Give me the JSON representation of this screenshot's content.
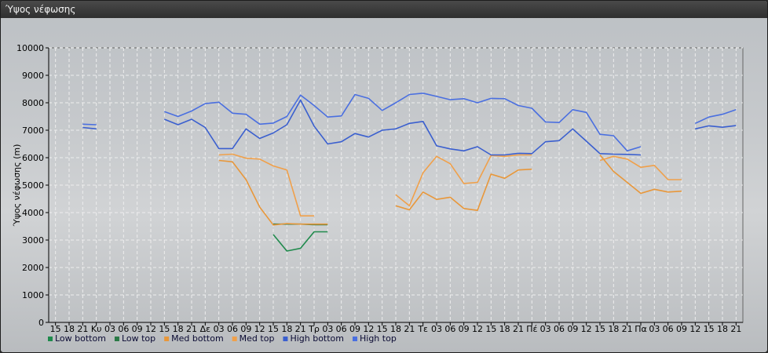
{
  "window": {
    "title": "Ύψος νέφωσης"
  },
  "chart_data": {
    "type": "line",
    "title": "Ύψος νέφωσης",
    "ylabel": "Ύψος νέφωσης (m)",
    "ylim": [
      0,
      10000
    ],
    "yticks": [
      0,
      1000,
      2000,
      3000,
      4000,
      5000,
      6000,
      7000,
      8000,
      9000,
      10000
    ],
    "grid": true,
    "legend_position": "bottom-left",
    "categories": [
      "15",
      "18",
      "21",
      "Κυ",
      "03",
      "06",
      "09",
      "12",
      "15",
      "18",
      "21",
      "Δε",
      "03",
      "06",
      "09",
      "12",
      "15",
      "18",
      "21",
      "Τρ",
      "03",
      "06",
      "09",
      "12",
      "15",
      "18",
      "21",
      "Τε",
      "03",
      "06",
      "09",
      "12",
      "15",
      "18",
      "21",
      "Πέ",
      "03",
      "06",
      "09",
      "12",
      "15",
      "18",
      "21",
      "Πα",
      "03",
      "06",
      "09",
      "12",
      "15",
      "18",
      "21"
    ],
    "series": [
      {
        "name": "Low bottom",
        "color": "#1f8a4c",
        "values": [
          null,
          null,
          null,
          null,
          null,
          null,
          null,
          null,
          null,
          null,
          null,
          null,
          null,
          null,
          null,
          null,
          3200,
          2600,
          2700,
          3300,
          3300,
          null,
          null,
          null,
          null,
          null,
          null,
          null,
          null,
          null,
          null,
          null,
          null,
          null,
          null,
          null,
          null,
          null,
          null,
          null,
          null,
          null,
          null,
          null,
          null,
          null,
          null,
          null,
          null,
          null,
          null
        ]
      },
      {
        "name": "Low top",
        "color": "#2a7a46",
        "values": [
          null,
          null,
          null,
          null,
          null,
          null,
          null,
          null,
          null,
          null,
          null,
          null,
          null,
          null,
          null,
          null,
          3580,
          3580,
          3580,
          3560,
          3560,
          null,
          null,
          null,
          null,
          null,
          null,
          null,
          null,
          null,
          null,
          null,
          null,
          null,
          null,
          null,
          null,
          null,
          null,
          null,
          null,
          null,
          null,
          null,
          null,
          null,
          null,
          null,
          null,
          null,
          null
        ]
      },
      {
        "name": "Med bottom",
        "color": "#e8973a",
        "values": [
          null,
          null,
          null,
          null,
          null,
          null,
          null,
          null,
          null,
          null,
          null,
          null,
          5900,
          5850,
          5200,
          4200,
          3550,
          3600,
          3580,
          3580,
          3580,
          null,
          null,
          null,
          null,
          4250,
          4100,
          4750,
          4480,
          4560,
          4150,
          4080,
          5400,
          5250,
          5550,
          5580,
          null,
          null,
          null,
          null,
          6100,
          5500,
          5100,
          4700,
          4850,
          4750,
          4780,
          null,
          null,
          null,
          null
        ]
      },
      {
        "name": "Med top",
        "color": "#f0a04a",
        "values": [
          null,
          null,
          null,
          null,
          null,
          null,
          null,
          null,
          null,
          null,
          null,
          null,
          6100,
          6130,
          5980,
          5950,
          5700,
          5550,
          3880,
          3880,
          null,
          null,
          null,
          null,
          null,
          4650,
          4250,
          5450,
          6050,
          5780,
          5060,
          5100,
          6080,
          6050,
          6100,
          6100,
          null,
          null,
          null,
          null,
          5900,
          6050,
          5950,
          5650,
          5720,
          5200,
          5200,
          null,
          null,
          null,
          null
        ]
      },
      {
        "name": "High bottom",
        "color": "#3a5fcf",
        "values": [
          null,
          null,
          7100,
          7050,
          null,
          null,
          null,
          null,
          7400,
          7200,
          7400,
          7100,
          6330,
          6330,
          7050,
          6700,
          6900,
          7200,
          8100,
          7150,
          6500,
          6580,
          6880,
          6750,
          7000,
          7050,
          7250,
          7320,
          6430,
          6320,
          6250,
          6400,
          6100,
          6100,
          6160,
          6150,
          6580,
          6620,
          7050,
          6600,
          6150,
          6130,
          6120,
          6100,
          null,
          null,
          null,
          7050,
          7160,
          7110,
          7170
        ]
      },
      {
        "name": "High top",
        "color": "#4a6fe0",
        "values": [
          null,
          null,
          7220,
          7200,
          null,
          null,
          null,
          null,
          7680,
          7500,
          7700,
          7970,
          8020,
          7620,
          7580,
          7220,
          7260,
          7500,
          8280,
          7900,
          7480,
          7520,
          8300,
          8160,
          7720,
          8000,
          8300,
          8350,
          8230,
          8110,
          8150,
          8000,
          8160,
          8150,
          7900,
          7800,
          7300,
          7280,
          7750,
          7650,
          6850,
          6800,
          6250,
          6400,
          null,
          null,
          null,
          7250,
          7480,
          7580,
          7750
        ]
      }
    ]
  }
}
